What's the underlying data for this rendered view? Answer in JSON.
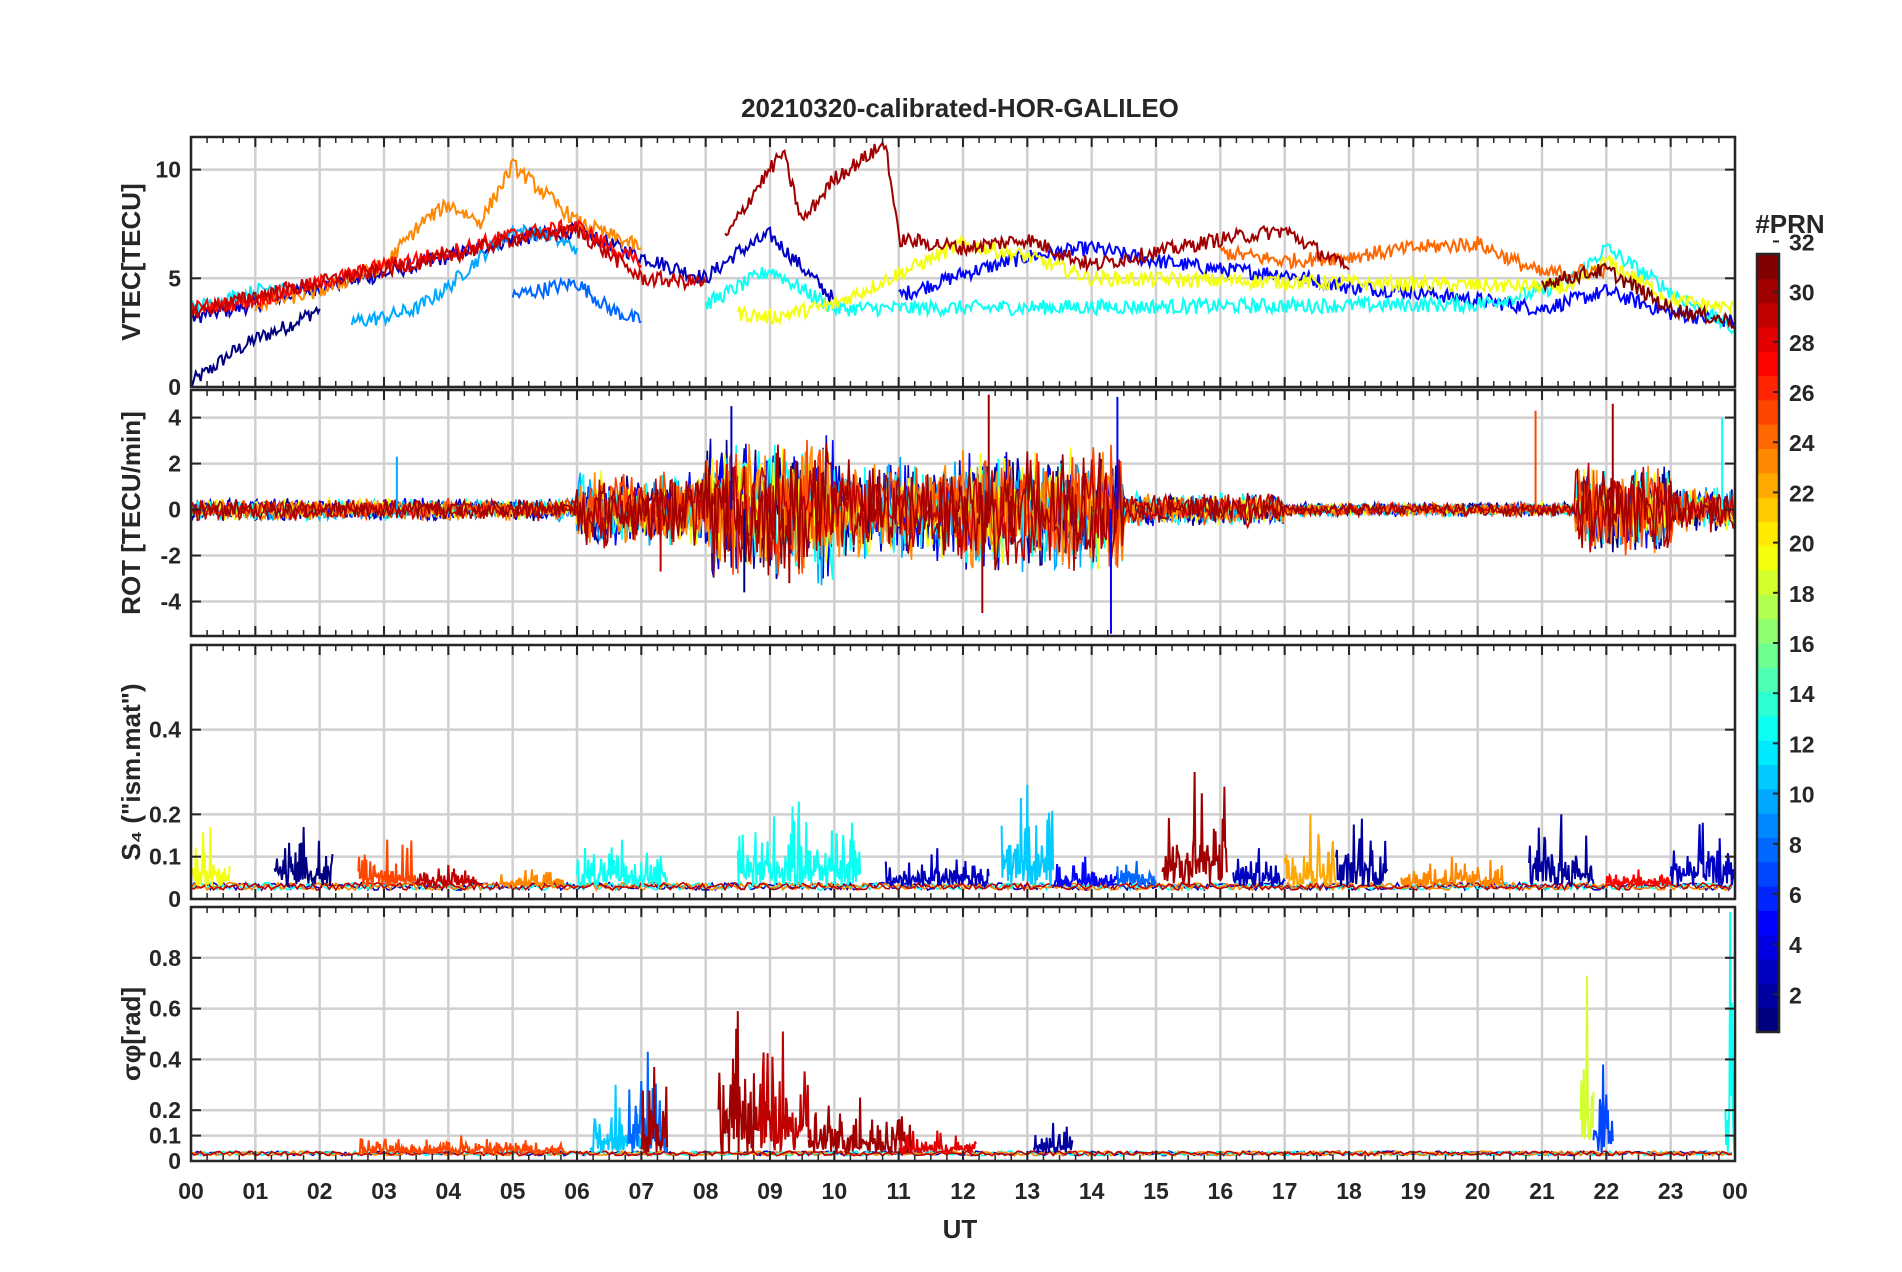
{
  "chart_data": [
    {
      "type": "line",
      "title": "20210320-calibrated-HOR-GALILEO",
      "panel_id": "vtec",
      "ylabel": "VTEC[TECU]",
      "ylim": [
        0,
        11.5
      ],
      "yticks": [
        0,
        5,
        10
      ],
      "ytick_labels": [
        "0",
        "5",
        "10"
      ],
      "xlim": [
        0,
        24
      ],
      "grid": true,
      "series": [
        {
          "prn": 1,
          "x": [
            0,
            0.3,
            0.6,
            1.0,
            1.5,
            2.0
          ],
          "y": [
            0.2,
            0.8,
            1.5,
            2.2,
            2.8,
            3.6
          ]
        },
        {
          "prn": 3,
          "x": [
            0,
            1,
            2,
            3,
            4,
            5,
            6,
            7,
            8,
            8.5,
            9,
            9.5,
            10
          ],
          "y": [
            3.2,
            3.8,
            4.6,
            5.2,
            6.0,
            6.8,
            7.2,
            6.0,
            5.0,
            6.2,
            7.0,
            5.5,
            4.0
          ]
        },
        {
          "prn": 5,
          "x": [
            11,
            12,
            13,
            14,
            15,
            16,
            17,
            18,
            19,
            20,
            21,
            22,
            23,
            24
          ],
          "y": [
            4.2,
            5.2,
            6.0,
            6.4,
            5.8,
            5.4,
            5.2,
            4.6,
            4.4,
            4.0,
            3.6,
            4.4,
            3.4,
            3.0
          ]
        },
        {
          "prn": 8,
          "x": [
            5,
            6,
            6.5,
            7
          ],
          "y": [
            4.2,
            4.8,
            3.6,
            3.0
          ]
        },
        {
          "prn": 10,
          "x": [
            2.5,
            3,
            3.5,
            4,
            4.5,
            5,
            5.5,
            6
          ],
          "y": [
            3.0,
            3.2,
            3.6,
            4.6,
            6.0,
            7.2,
            7.0,
            6.4
          ]
        },
        {
          "prn": 12,
          "x": [
            0,
            0.5,
            1,
            1.5
          ],
          "y": [
            3.6,
            4.0,
            4.4,
            4.8
          ]
        },
        {
          "prn": 13,
          "x": [
            8,
            8.5,
            9,
            10,
            20,
            21,
            21.5,
            22,
            23,
            24
          ],
          "y": [
            3.8,
            4.6,
            5.4,
            3.6,
            3.8,
            4.4,
            5.0,
            6.4,
            4.4,
            2.6
          ]
        },
        {
          "prn": 20,
          "x": [
            8.5,
            9,
            10,
            11,
            12,
            13,
            14,
            21.5,
            22,
            23,
            24
          ],
          "y": [
            3.4,
            3.2,
            3.8,
            5.2,
            6.6,
            6.0,
            5.0,
            4.6,
            5.8,
            4.0,
            3.6
          ]
        },
        {
          "prn": 24,
          "x": [
            1,
            2,
            3,
            3.6,
            4,
            4.5,
            5,
            6,
            7
          ],
          "y": [
            3.8,
            4.4,
            5.6,
            7.6,
            8.4,
            7.6,
            10.2,
            7.6,
            6.4
          ]
        },
        {
          "prn": 25,
          "x": [
            16,
            17,
            18,
            19,
            20,
            21,
            22
          ],
          "y": [
            6.2,
            5.8,
            6.0,
            6.4,
            6.6,
            5.2,
            5.4
          ]
        },
        {
          "prn": 28,
          "x": [
            0,
            1,
            2,
            3,
            4,
            5,
            6,
            7
          ],
          "y": [
            3.6,
            4.0,
            4.8,
            5.6,
            6.2,
            7.0,
            7.4,
            5.6
          ]
        },
        {
          "prn": 30,
          "x": [
            0,
            1,
            2,
            3,
            4,
            5,
            6,
            7,
            8
          ],
          "y": [
            3.4,
            4.2,
            4.8,
            5.4,
            6.0,
            6.8,
            7.2,
            5.0,
            4.8
          ]
        },
        {
          "prn": 31,
          "x": [
            8.3,
            8.8,
            9.2,
            9.5,
            10,
            10.8,
            11,
            12,
            13,
            14,
            15,
            16,
            17,
            18
          ],
          "y": [
            6.8,
            9.2,
            10.8,
            7.6,
            9.6,
            11.2,
            6.8,
            6.4,
            6.8,
            5.6,
            6.2,
            6.8,
            7.2,
            5.4
          ]
        },
        {
          "prn": 32,
          "x": [
            21,
            22,
            23,
            24
          ],
          "y": [
            4.8,
            5.4,
            3.6,
            3.0
          ]
        }
      ]
    },
    {
      "type": "line",
      "panel_id": "rot",
      "ylabel": "ROT [TECU/min]",
      "ylim": [
        -5.5,
        5.2
      ],
      "yticks": [
        -4,
        -2,
        0,
        2,
        4
      ],
      "ytick_labels": [
        "-4",
        "-2",
        "0",
        "2",
        "4"
      ],
      "xlim": [
        0,
        24
      ],
      "grid": true,
      "noise_bands": [
        {
          "x": [
            0,
            6
          ],
          "amplitude": 0.4
        },
        {
          "x": [
            6,
            8
          ],
          "amplitude": 1.4
        },
        {
          "x": [
            8,
            10
          ],
          "amplitude": 2.6
        },
        {
          "x": [
            10,
            12
          ],
          "amplitude": 1.8
        },
        {
          "x": [
            12,
            14.5
          ],
          "amplitude": 2.2
        },
        {
          "x": [
            14.5,
            17
          ],
          "amplitude": 0.6
        },
        {
          "x": [
            17,
            21.5
          ],
          "amplitude": 0.25
        },
        {
          "x": [
            21.5,
            23
          ],
          "amplitude": 1.6
        },
        {
          "x": [
            23,
            24
          ],
          "amplitude": 0.8
        }
      ],
      "spikes": [
        {
          "x": 3.2,
          "y": 2.3,
          "prn": 10
        },
        {
          "x": 7.3,
          "y": -2.7,
          "prn": 30
        },
        {
          "x": 8.4,
          "y": 4.5,
          "prn": 3
        },
        {
          "x": 8.6,
          "y": -3.6,
          "prn": 1
        },
        {
          "x": 9.3,
          "y": -3.2,
          "prn": 31
        },
        {
          "x": 12.3,
          "y": -4.5,
          "prn": 31
        },
        {
          "x": 12.4,
          "y": 5.0,
          "prn": 31
        },
        {
          "x": 14.3,
          "y": -5.4,
          "prn": 5
        },
        {
          "x": 14.4,
          "y": 4.9,
          "prn": 5
        },
        {
          "x": 20.9,
          "y": 4.3,
          "prn": 26
        },
        {
          "x": 22.1,
          "y": 4.6,
          "prn": 31
        },
        {
          "x": 23.8,
          "y": 4.0,
          "prn": 13
        }
      ]
    },
    {
      "type": "line",
      "panel_id": "s4",
      "ylabel": "S₄ (\"ism.mat\")",
      "ylim": [
        0,
        0.6
      ],
      "yticks": [
        0,
        0.1,
        0.2,
        0.4
      ],
      "ytick_labels": [
        "0",
        "0.1",
        "0.2",
        "0.4"
      ],
      "xlim": [
        0,
        24
      ],
      "grid": true,
      "baseline": 0.03,
      "bursts": [
        {
          "x": [
            0.0,
            0.6
          ],
          "peak": 0.17,
          "prn": 20
        },
        {
          "x": [
            1.3,
            2.2
          ],
          "peak": 0.17,
          "prn": 1
        },
        {
          "x": [
            2.6,
            3.5
          ],
          "peak": 0.14,
          "prn": 26
        },
        {
          "x": [
            3.5,
            4.5
          ],
          "peak": 0.08,
          "prn": 30
        },
        {
          "x": [
            4.8,
            5.8
          ],
          "peak": 0.07,
          "prn": 24
        },
        {
          "x": [
            6.0,
            7.4
          ],
          "peak": 0.14,
          "prn": 13
        },
        {
          "x": [
            8.5,
            10.4
          ],
          "peak": 0.23,
          "prn": 13
        },
        {
          "x": [
            10.8,
            12.4
          ],
          "peak": 0.12,
          "prn": 3
        },
        {
          "x": [
            12.6,
            13.4
          ],
          "peak": 0.27,
          "prn": 11
        },
        {
          "x": [
            13.4,
            14.4
          ],
          "peak": 0.1,
          "prn": 5
        },
        {
          "x": [
            14.4,
            15.0
          ],
          "peak": 0.09,
          "prn": 8
        },
        {
          "x": [
            15.1,
            16.1
          ],
          "peak": 0.3,
          "prn": 31
        },
        {
          "x": [
            16.2,
            17.0
          ],
          "peak": 0.12,
          "prn": 3
        },
        {
          "x": [
            17.0,
            17.8
          ],
          "peak": 0.2,
          "prn": 23
        },
        {
          "x": [
            17.8,
            18.6
          ],
          "peak": 0.19,
          "prn": 2
        },
        {
          "x": [
            18.8,
            20.4
          ],
          "peak": 0.1,
          "prn": 24
        },
        {
          "x": [
            20.8,
            21.8
          ],
          "peak": 0.2,
          "prn": 2
        },
        {
          "x": [
            22.0,
            23.0
          ],
          "peak": 0.07,
          "prn": 28
        },
        {
          "x": [
            23.0,
            24.0
          ],
          "peak": 0.18,
          "prn": 3
        }
      ]
    },
    {
      "type": "line",
      "panel_id": "sigma",
      "ylabel": "σφ[rad]",
      "ylim": [
        0,
        1.0
      ],
      "yticks": [
        0,
        0.1,
        0.2,
        0.4,
        0.6,
        0.8
      ],
      "ytick_labels": [
        "0",
        "0.1",
        "0.2",
        "0.4",
        "0.6",
        "0.8"
      ],
      "xlim": [
        0,
        24
      ],
      "grid": true,
      "baseline": 0.03,
      "bursts": [
        {
          "x": [
            2.6,
            5.8
          ],
          "peak": 0.1,
          "prn": 26
        },
        {
          "x": [
            6.2,
            7.0
          ],
          "peak": 0.3,
          "prn": 11
        },
        {
          "x": [
            6.8,
            7.4
          ],
          "peak": 0.43,
          "prn": 8
        },
        {
          "x": [
            7.0,
            7.4
          ],
          "peak": 0.37,
          "prn": 31
        },
        {
          "x": [
            8.2,
            8.8
          ],
          "peak": 0.59,
          "prn": 31
        },
        {
          "x": [
            8.8,
            9.6
          ],
          "peak": 0.51,
          "prn": 30
        },
        {
          "x": [
            9.6,
            11.2
          ],
          "peak": 0.25,
          "prn": 31
        },
        {
          "x": [
            11.0,
            12.2
          ],
          "peak": 0.12,
          "prn": 29
        },
        {
          "x": [
            13.1,
            13.7
          ],
          "peak": 0.15,
          "prn": 2
        },
        {
          "x": [
            21.6,
            21.8
          ],
          "peak": 0.73,
          "prn": 19
        },
        {
          "x": [
            21.8,
            22.1
          ],
          "peak": 0.38,
          "prn": 7
        },
        {
          "x": [
            23.85,
            24.0
          ],
          "peak": 0.98,
          "prn": 13
        }
      ]
    }
  ],
  "xaxis": {
    "label": "UT",
    "ticks": [
      0,
      1,
      2,
      3,
      4,
      5,
      6,
      7,
      8,
      9,
      10,
      11,
      12,
      13,
      14,
      15,
      16,
      17,
      18,
      19,
      20,
      21,
      22,
      23,
      24
    ],
    "tick_labels": [
      "00",
      "01",
      "02",
      "03",
      "04",
      "05",
      "06",
      "07",
      "08",
      "09",
      "10",
      "11",
      "12",
      "13",
      "14",
      "15",
      "16",
      "17",
      "18",
      "19",
      "20",
      "21",
      "22",
      "23",
      "00"
    ]
  },
  "colorbar": {
    "title": "#PRN",
    "colormap": "jet",
    "range": [
      1,
      32
    ],
    "ticks": [
      2,
      4,
      6,
      8,
      10,
      12,
      14,
      16,
      18,
      20,
      22,
      24,
      26,
      28,
      30,
      32
    ],
    "tick_labels": [
      "2",
      "4",
      "6",
      "8",
      "10",
      "12",
      "14",
      "16",
      "18",
      "20",
      "22",
      "24",
      "26",
      "28",
      "30",
      "32"
    ]
  }
}
